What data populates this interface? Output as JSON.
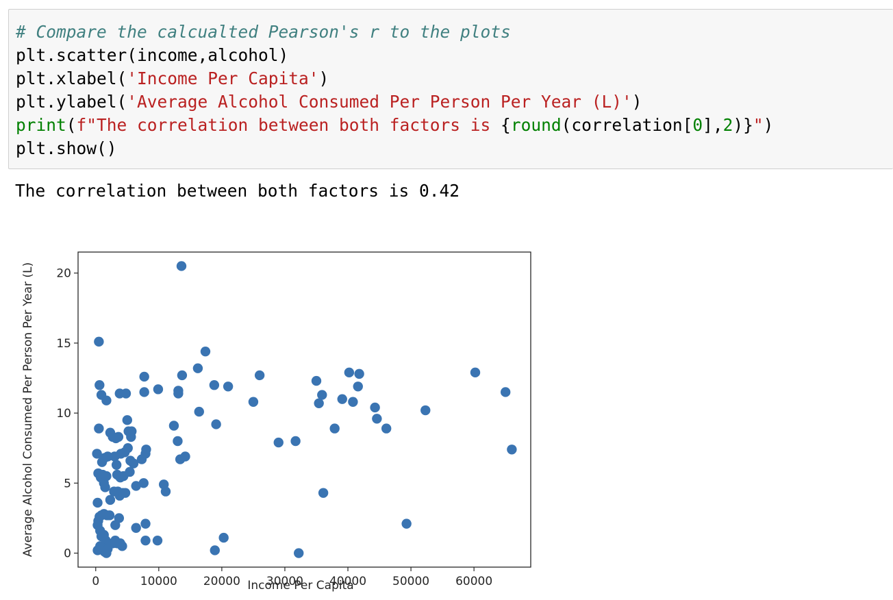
{
  "cell": {
    "code_lines": [
      [
        {
          "t": "# Compare the calcualted Pearson's r to the plots",
          "c": "comment"
        }
      ],
      [
        {
          "t": "plt.scatter(income,alcohol)",
          "c": ""
        }
      ],
      [
        {
          "t": "plt.xlabel(",
          "c": ""
        },
        {
          "t": "'Income Per Capita'",
          "c": "str"
        },
        {
          "t": ")",
          "c": ""
        }
      ],
      [
        {
          "t": "plt.ylabel(",
          "c": ""
        },
        {
          "t": "'Average Alcohol Consumed Per Person Per Year (L)'",
          "c": "str"
        },
        {
          "t": ")",
          "c": ""
        }
      ],
      [
        {
          "t": "print",
          "c": "builtin"
        },
        {
          "t": "(",
          "c": ""
        },
        {
          "t": "f\"The correlation between both factors is ",
          "c": "str"
        },
        {
          "t": "{",
          "c": ""
        },
        {
          "t": "round",
          "c": "builtin"
        },
        {
          "t": "(correlation[",
          "c": ""
        },
        {
          "t": "0",
          "c": "num"
        },
        {
          "t": "],",
          "c": ""
        },
        {
          "t": "2",
          "c": "num"
        },
        {
          "t": ")}",
          "c": ""
        },
        {
          "t": "\"",
          "c": "str"
        },
        {
          "t": ")",
          "c": ""
        }
      ],
      [
        {
          "t": "plt.show()",
          "c": ""
        }
      ]
    ],
    "output_text": "The correlation between both factors is 0.42"
  },
  "chart_data": {
    "type": "scatter",
    "xlabel": "Income Per Capita",
    "ylabel": "Average Alcohol Consumed Per Person Per Year (L)",
    "xlim": [
      -2800,
      69000
    ],
    "ylim": [
      -1.0,
      21.5
    ],
    "xticks": [
      0,
      10000,
      20000,
      30000,
      40000,
      50000,
      60000
    ],
    "yticks": [
      0,
      5,
      10,
      15,
      20
    ],
    "grid": false,
    "color": "#3a74b2",
    "points": [
      [
        500,
        15.1
      ],
      [
        600,
        12.0
      ],
      [
        900,
        11.3
      ],
      [
        1700,
        10.9
      ],
      [
        500,
        8.9
      ],
      [
        200,
        7.1
      ],
      [
        400,
        5.7
      ],
      [
        800,
        5.4
      ],
      [
        1100,
        5.6
      ],
      [
        1300,
        5.0
      ],
      [
        1500,
        4.7
      ],
      [
        1700,
        5.5
      ],
      [
        1000,
        6.5
      ],
      [
        1400,
        6.8
      ],
      [
        1900,
        6.9
      ],
      [
        2300,
        8.6
      ],
      [
        2700,
        8.3
      ],
      [
        3200,
        8.2
      ],
      [
        3600,
        8.3
      ],
      [
        3800,
        11.4
      ],
      [
        4800,
        11.4
      ],
      [
        5000,
        9.5
      ],
      [
        5200,
        8.7
      ],
      [
        5700,
        8.7
      ],
      [
        5600,
        8.3
      ],
      [
        3000,
        6.9
      ],
      [
        3300,
        6.3
      ],
      [
        4000,
        7.1
      ],
      [
        4600,
        7.2
      ],
      [
        5100,
        7.5
      ],
      [
        5500,
        6.6
      ],
      [
        6000,
        6.4
      ],
      [
        3400,
        5.6
      ],
      [
        3900,
        5.4
      ],
      [
        4400,
        5.5
      ],
      [
        5400,
        5.8
      ],
      [
        2300,
        3.8
      ],
      [
        2900,
        4.4
      ],
      [
        3500,
        4.4
      ],
      [
        3800,
        4.1
      ],
      [
        4300,
        4.3
      ],
      [
        4700,
        4.3
      ],
      [
        300,
        3.6
      ],
      [
        400,
        2.3
      ],
      [
        600,
        2.6
      ],
      [
        900,
        2.7
      ],
      [
        1300,
        2.8
      ],
      [
        1800,
        2.7
      ],
      [
        2200,
        2.7
      ],
      [
        300,
        2.0
      ],
      [
        700,
        1.6
      ],
      [
        900,
        1.2
      ],
      [
        1300,
        1.3
      ],
      [
        1600,
        0.9
      ],
      [
        700,
        0.5
      ],
      [
        300,
        0.2
      ],
      [
        1000,
        0.3
      ],
      [
        1400,
        0.1
      ],
      [
        1700,
        0.0
      ],
      [
        1900,
        0.3
      ],
      [
        2700,
        0.7
      ],
      [
        3100,
        0.9
      ],
      [
        3400,
        0.7
      ],
      [
        3700,
        2.5
      ],
      [
        3100,
        2.0
      ],
      [
        4200,
        0.5
      ],
      [
        3900,
        0.7
      ],
      [
        6400,
        1.8
      ],
      [
        7900,
        0.9
      ],
      [
        9800,
        0.9
      ],
      [
        7900,
        2.1
      ],
      [
        6400,
        4.8
      ],
      [
        7600,
        5.0
      ],
      [
        10800,
        4.9
      ],
      [
        11100,
        4.4
      ],
      [
        7300,
        6.7
      ],
      [
        7900,
        7.1
      ],
      [
        8000,
        7.4
      ],
      [
        7700,
        11.5
      ],
      [
        7700,
        12.6
      ],
      [
        9900,
        11.7
      ],
      [
        12400,
        9.1
      ],
      [
        13100,
        11.6
      ],
      [
        13100,
        11.4
      ],
      [
        13700,
        12.7
      ],
      [
        13000,
        8.0
      ],
      [
        13400,
        6.7
      ],
      [
        14200,
        6.9
      ],
      [
        13600,
        20.5
      ],
      [
        16200,
        13.2
      ],
      [
        17400,
        14.4
      ],
      [
        16400,
        10.1
      ],
      [
        18800,
        12.0
      ],
      [
        21000,
        11.9
      ],
      [
        19100,
        9.2
      ],
      [
        25000,
        10.8
      ],
      [
        26000,
        12.7
      ],
      [
        29000,
        7.9
      ],
      [
        31700,
        8.0
      ],
      [
        18900,
        0.2
      ],
      [
        20300,
        1.1
      ],
      [
        32200,
        0.0
      ],
      [
        36100,
        4.3
      ],
      [
        35000,
        12.3
      ],
      [
        35400,
        10.7
      ],
      [
        35900,
        11.3
      ],
      [
        37900,
        8.9
      ],
      [
        39100,
        11.0
      ],
      [
        40200,
        12.9
      ],
      [
        40800,
        10.8
      ],
      [
        41600,
        11.9
      ],
      [
        41800,
        12.8
      ],
      [
        44300,
        10.4
      ],
      [
        44600,
        9.6
      ],
      [
        46100,
        8.9
      ],
      [
        49300,
        2.1
      ],
      [
        52300,
        10.2
      ],
      [
        60200,
        12.9
      ],
      [
        65000,
        11.5
      ],
      [
        66000,
        7.4
      ]
    ]
  }
}
